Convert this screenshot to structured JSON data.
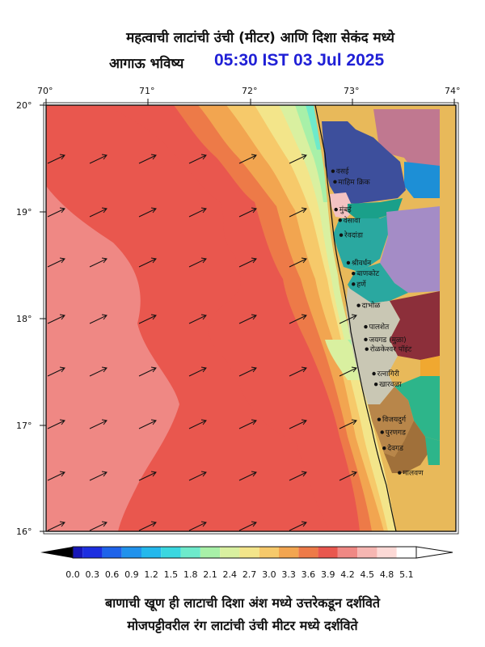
{
  "header": {
    "title_line1": "महत्वाची लाटांची उंची (मीटर) आणि दिशा सेकंद मध्ये",
    "title_line2": "आगाऊ भविष्य",
    "timestamp": "05:30 IST 03 Jul 2025"
  },
  "axes": {
    "lon_labels": [
      "70°",
      "71°",
      "72°",
      "73°",
      "74°"
    ],
    "lat_labels": [
      "20°",
      "19°",
      "18°",
      "17°",
      "16°"
    ]
  },
  "places": [
    {
      "name": "वसई",
      "lat": 19.38,
      "lon": 72.8
    },
    {
      "name": "माहिम क्रिक",
      "lat": 19.28,
      "lon": 72.82
    },
    {
      "name": "मुंबई",
      "lat": 19.02,
      "lon": 72.83
    },
    {
      "name": "वेसावा",
      "lat": 18.92,
      "lon": 72.87
    },
    {
      "name": "रेवदांडा",
      "lat": 18.78,
      "lon": 72.88
    },
    {
      "name": "श्रीवर्धन",
      "lat": 18.52,
      "lon": 72.95
    },
    {
      "name": "बाणकोट",
      "lat": 18.42,
      "lon": 73.0
    },
    {
      "name": "हर्णे",
      "lat": 18.32,
      "lon": 73.0
    },
    {
      "name": "दाभोळ",
      "lat": 18.12,
      "lon": 73.05
    },
    {
      "name": "पालशेत",
      "lat": 17.92,
      "lon": 73.12
    },
    {
      "name": "जयगड (मुळा)",
      "lat": 17.8,
      "lon": 73.12
    },
    {
      "name": "रोळकेश्वर पॉइंट",
      "lat": 17.71,
      "lon": 73.13
    },
    {
      "name": "रत्नागिरी",
      "lat": 17.48,
      "lon": 73.2
    },
    {
      "name": "खारवळा",
      "lat": 17.38,
      "lon": 73.22
    },
    {
      "name": "विजयदुर्ग",
      "lat": 17.05,
      "lon": 73.25
    },
    {
      "name": "पुरणगड",
      "lat": 16.93,
      "lon": 73.28
    },
    {
      "name": "देवगड",
      "lat": 16.78,
      "lon": 73.3
    },
    {
      "name": "मालवण",
      "lat": 16.55,
      "lon": 73.45
    }
  ],
  "colorbar": {
    "ticks": [
      "0.0",
      "0.3",
      "0.6",
      "0.9",
      "1.2",
      "1.5",
      "1.8",
      "2.1",
      "2.4",
      "2.7",
      "3.0",
      "3.3",
      "3.6",
      "3.9",
      "4.2",
      "4.5",
      "4.8",
      "5.1"
    ],
    "colors": [
      "#110a7a",
      "#1616b8",
      "#1c2ee0",
      "#1e63ea",
      "#2192ec",
      "#24b8ec",
      "#3ad7e0",
      "#6eeacb",
      "#a8f0a8",
      "#d9f0a0",
      "#f3e58a",
      "#f6c96a",
      "#f2a550",
      "#ed7a48",
      "#e9574e",
      "#ef8884",
      "#f6b6b2",
      "#fcd9d6",
      "#ffffff"
    ]
  },
  "footer": {
    "line1": "बाणाची खूण ही लाटाची दिशा अंश मध्ये उत्तरेकडून दर्शविते",
    "line2": "मोजपट्टीवरील रंग लाटांची उंची मीटर मध्ये दर्शविते"
  }
}
